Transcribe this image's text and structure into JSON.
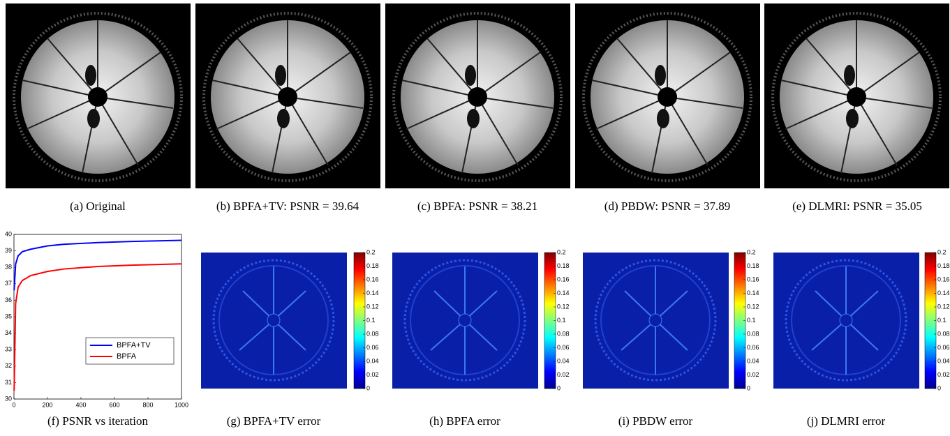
{
  "captions": [
    "(a) Original",
    "(b) BPFA+TV: PSNR = 39.64",
    "(c) BPFA: PSNR = 38.21",
    "(d) PBDW: PSNR = 37.89",
    "(e) DLMRI: PSNR = 35.05",
    "(f) PSNR vs iteration",
    "(g) BPFA+TV error",
    "(h) BPFA error",
    "(i) PBDW error",
    "(j) DLMRI error"
  ],
  "colorbar": {
    "lim": [
      0,
      0.2
    ],
    "ticks": [
      0,
      0.02,
      0.04,
      0.06,
      0.08,
      0.1,
      0.12,
      0.14,
      0.16,
      0.18,
      0.2
    ]
  },
  "chart_data": {
    "type": "line",
    "x": [
      1,
      10,
      25,
      50,
      100,
      200,
      300,
      500,
      700,
      1000
    ],
    "series": [
      {
        "name": "BPFA+TV",
        "color": "#0000ff",
        "values": [
          36.6,
          38.2,
          38.7,
          38.95,
          39.1,
          39.3,
          39.4,
          39.5,
          39.57,
          39.64
        ]
      },
      {
        "name": "BPFA",
        "color": "#ff0000",
        "values": [
          30.5,
          35.8,
          36.8,
          37.2,
          37.5,
          37.75,
          37.9,
          38.05,
          38.13,
          38.21
        ]
      }
    ],
    "xlim": [
      0,
      1000
    ],
    "xticks": [
      0,
      200,
      400,
      600,
      800,
      1000
    ],
    "ylim": [
      30,
      40
    ],
    "yticks": [
      30,
      31,
      32,
      33,
      34,
      35,
      36,
      37,
      38,
      39,
      40
    ],
    "legend": "center right"
  }
}
